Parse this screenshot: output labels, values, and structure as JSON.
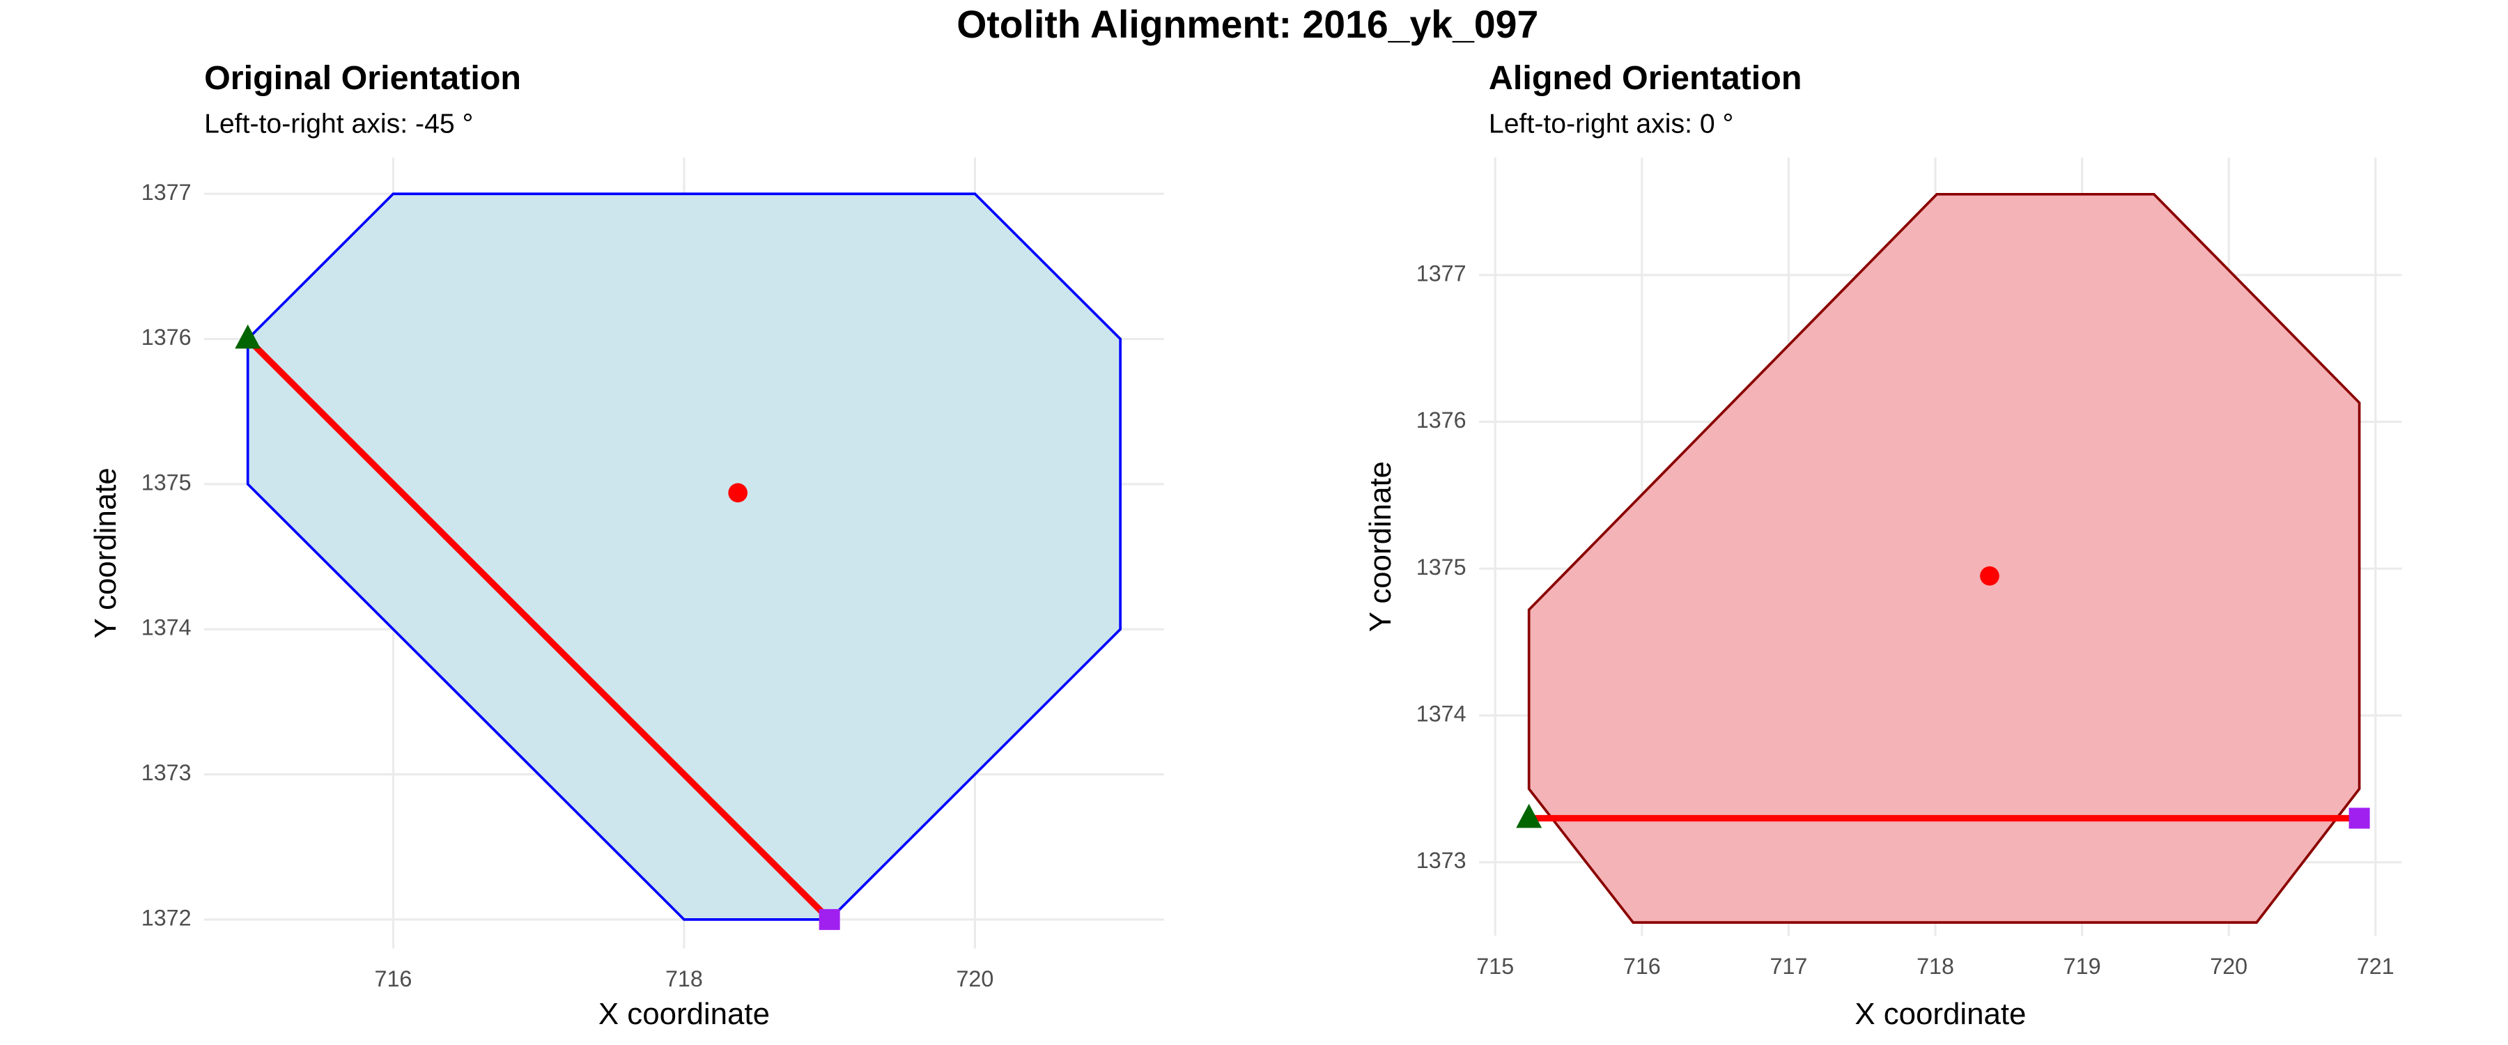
{
  "title": "Otolith Alignment: 2016_yk_097",
  "chart_data": [
    {
      "type": "polygon",
      "title": "Original Orientation",
      "subtitle": "Left-to-right axis: -45 °",
      "xlabel": "X coordinate",
      "ylabel": "Y coordinate",
      "xlim": [
        714.7,
        721.3
      ],
      "ylim": [
        1371.8,
        1377.25
      ],
      "xticks": [
        716,
        718,
        720
      ],
      "yticks": [
        1372,
        1373,
        1374,
        1375,
        1376,
        1377
      ],
      "grid": true,
      "polygon": {
        "x": [
          716,
          720,
          721,
          721,
          719,
          718,
          715,
          715
        ],
        "y": [
          1377,
          1377,
          1376,
          1374,
          1372,
          1372,
          1375,
          1376
        ],
        "fill": "#cde6ee",
        "stroke": "#0000ff"
      },
      "axis_line": {
        "x": [
          715,
          719
        ],
        "y": [
          1376,
          1372
        ],
        "color": "#ff0000"
      },
      "start_point": {
        "x": 715,
        "y": 1376,
        "color": "#006400"
      },
      "end_point": {
        "x": 719,
        "y": 1372,
        "color": "#a020f0"
      },
      "centroid": {
        "x": 718.37,
        "y": 1374.94,
        "color": "#ff0000"
      }
    },
    {
      "type": "polygon",
      "title": "Aligned Orientation",
      "subtitle": "Left-to-right axis: 0 °",
      "xlabel": "X coordinate",
      "ylabel": "Y coordinate",
      "xlim": [
        714.89,
        721.18
      ],
      "ylim": [
        1372.5,
        1377.8
      ],
      "xticks": [
        715,
        716,
        717,
        718,
        719,
        720,
        721
      ],
      "yticks": [
        1373,
        1374,
        1375,
        1376,
        1377
      ],
      "grid": true,
      "polygon": {
        "x": [
          718.01,
          719.49,
          720.89,
          720.89,
          720.19,
          715.94,
          715.23,
          715.23
        ],
        "y": [
          1377.55,
          1377.55,
          1376.13,
          1373.5,
          1372.59,
          1372.59,
          1373.5,
          1374.72
        ],
        "fill": "#f4b3b6",
        "stroke": "#8b0000"
      },
      "axis_line": {
        "x": [
          715.23,
          720.89
        ],
        "y": [
          1373.3,
          1373.3
        ],
        "color": "#ff0000"
      },
      "start_point": {
        "x": 715.23,
        "y": 1373.3,
        "color": "#006400"
      },
      "end_point": {
        "x": 720.89,
        "y": 1373.3,
        "color": "#a020f0"
      },
      "centroid": {
        "x": 718.37,
        "y": 1374.95,
        "color": "#ff0000"
      }
    }
  ]
}
